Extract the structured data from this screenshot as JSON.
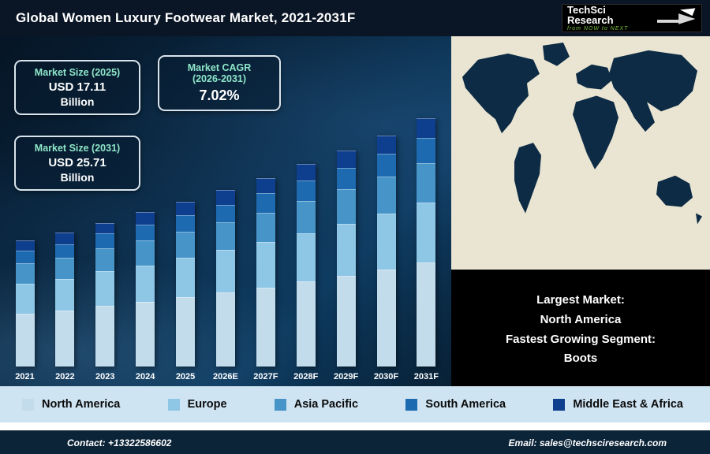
{
  "header": {
    "title": "Global Women Luxury Footwear Market, 2021-2031F",
    "logo_brand": "TechSci Research",
    "logo_tagline": "from NOW to NEXT"
  },
  "stats": {
    "size_2025": {
      "label": "Market Size (2025)",
      "value": "USD 17.11",
      "unit": "Billion"
    },
    "cagr": {
      "label": "Market CAGR",
      "sublabel": "(2026-2031)",
      "value": "7.02%"
    },
    "size_2031": {
      "label": "Market Size (2031)",
      "value": "USD 25.71",
      "unit": "Billion"
    }
  },
  "chart_data": {
    "type": "bar",
    "stacked": true,
    "title": "Global Women Luxury Footwear Market, 2021-2031F",
    "unit": "USD Billion",
    "categories": [
      "2021",
      "2022",
      "2023",
      "2024",
      "2025",
      "2026E",
      "2027F",
      "2028F",
      "2029F",
      "2030F",
      "2031F"
    ],
    "series": [
      {
        "name": "North America",
        "color": "#c3dcec",
        "values": [
          5.5,
          5.8,
          6.3,
          6.7,
          7.2,
          7.7,
          8.2,
          8.8,
          9.4,
          10.1,
          10.8
        ]
      },
      {
        "name": "Europe",
        "color": "#8ec6e6",
        "values": [
          3.1,
          3.3,
          3.6,
          3.8,
          4.1,
          4.4,
          4.7,
          5.0,
          5.4,
          5.8,
          6.2
        ]
      },
      {
        "name": "Asia Pacific",
        "color": "#4794c8",
        "values": [
          2.1,
          2.2,
          2.4,
          2.6,
          2.7,
          2.9,
          3.1,
          3.4,
          3.6,
          3.8,
          4.1
        ]
      },
      {
        "name": "South America",
        "color": "#1e6ab0",
        "values": [
          1.3,
          1.4,
          1.5,
          1.6,
          1.7,
          1.8,
          2.0,
          2.1,
          2.2,
          2.4,
          2.6
        ]
      },
      {
        "name": "Middle East & Africa",
        "color": "#0e3e8e",
        "values": [
          1.1,
          1.2,
          1.1,
          1.3,
          1.4,
          1.5,
          1.6,
          1.7,
          1.8,
          1.9,
          2.1
        ]
      }
    ],
    "totals_note": {
      "2025": 17.11,
      "2031": 25.71,
      "cagr_2026_2031_pct": 7.02
    },
    "ylim": [
      0,
      27
    ],
    "grid": false,
    "legend_position": "bottom"
  },
  "map_panel": {
    "lines": [
      "Largest Market:",
      "North America",
      "Fastest Growing Segment:",
      "Boots"
    ]
  },
  "footer": {
    "contact": "Contact: +13322586602",
    "email": "Email: sales@techsciresearch.com"
  }
}
